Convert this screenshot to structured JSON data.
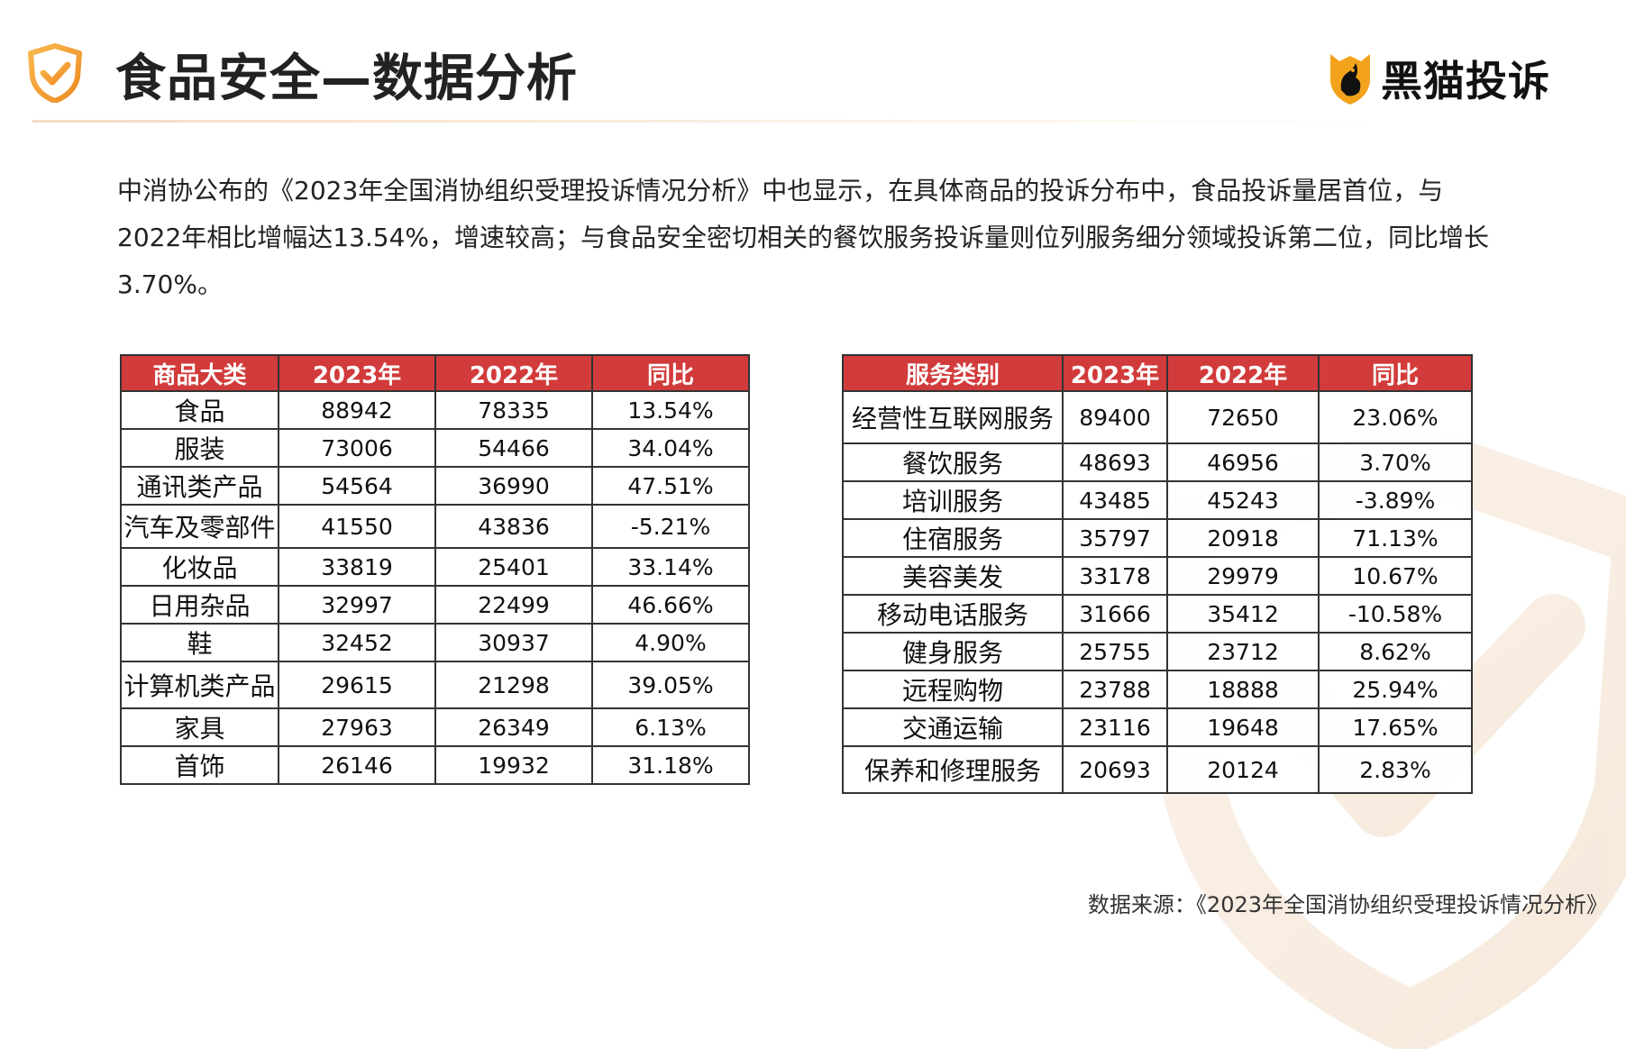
{
  "header": {
    "title": "食品安全—数据分析",
    "brand_name": "黑猫投诉",
    "icons": {
      "title_icon": "shield-check-icon",
      "brand_icon": "black-cat-shield-logo"
    },
    "colors": {
      "accent_orange": "#f4a23c",
      "table_header_red": "#d23b3b"
    }
  },
  "intro": {
    "text": "中消协公布的《2023年全国消协组织受理投诉情况分析》中也显示，在具体商品的投诉分布中，食品投诉量居首位，与2022年相比增幅达13.54%，增速较高；与食品安全密切相关的餐饮服务投诉量则位列服务细分领域投诉第二位，同比增长3.70%。"
  },
  "goods_table": {
    "headers": [
      "商品大类",
      "2023年",
      "2022年",
      "同比"
    ],
    "rows": [
      [
        "食品",
        "88942",
        "78335",
        "13.54%"
      ],
      [
        "服装",
        "73006",
        "54466",
        "34.04%"
      ],
      [
        "通讯类产品",
        "54564",
        "36990",
        "47.51%"
      ],
      [
        "汽车及零部件",
        "41550",
        "43836",
        "-5.21%"
      ],
      [
        "化妆品",
        "33819",
        "25401",
        "33.14%"
      ],
      [
        "日用杂品",
        "32997",
        "22499",
        "46.66%"
      ],
      [
        "鞋",
        "32452",
        "30937",
        "4.90%"
      ],
      [
        "计算机类产品",
        "29615",
        "21298",
        "39.05%"
      ],
      [
        "家具",
        "27963",
        "26349",
        "6.13%"
      ],
      [
        "首饰",
        "26146",
        "19932",
        "31.18%"
      ]
    ]
  },
  "service_table": {
    "headers": [
      "服务类别",
      "2023年",
      "2022年",
      "同比"
    ],
    "rows": [
      [
        "经营性互联网服务",
        "89400",
        "72650",
        "23.06%"
      ],
      [
        "餐饮服务",
        "48693",
        "46956",
        "3.70%"
      ],
      [
        "培训服务",
        "43485",
        "45243",
        "-3.89%"
      ],
      [
        "住宿服务",
        "35797",
        "20918",
        "71.13%"
      ],
      [
        "美容美发",
        "33178",
        "29979",
        "10.67%"
      ],
      [
        "移动电话服务",
        "31666",
        "35412",
        "-10.58%"
      ],
      [
        "健身服务",
        "25755",
        "23712",
        "8.62%"
      ],
      [
        "远程购物",
        "23788",
        "18888",
        "25.94%"
      ],
      [
        "交通运输",
        "23116",
        "19648",
        "17.65%"
      ],
      [
        "保养和修理服务",
        "20693",
        "20124",
        "2.83%"
      ]
    ]
  },
  "footer": {
    "source": "数据来源：《2023年全国消协组织受理投诉情况分析》"
  }
}
